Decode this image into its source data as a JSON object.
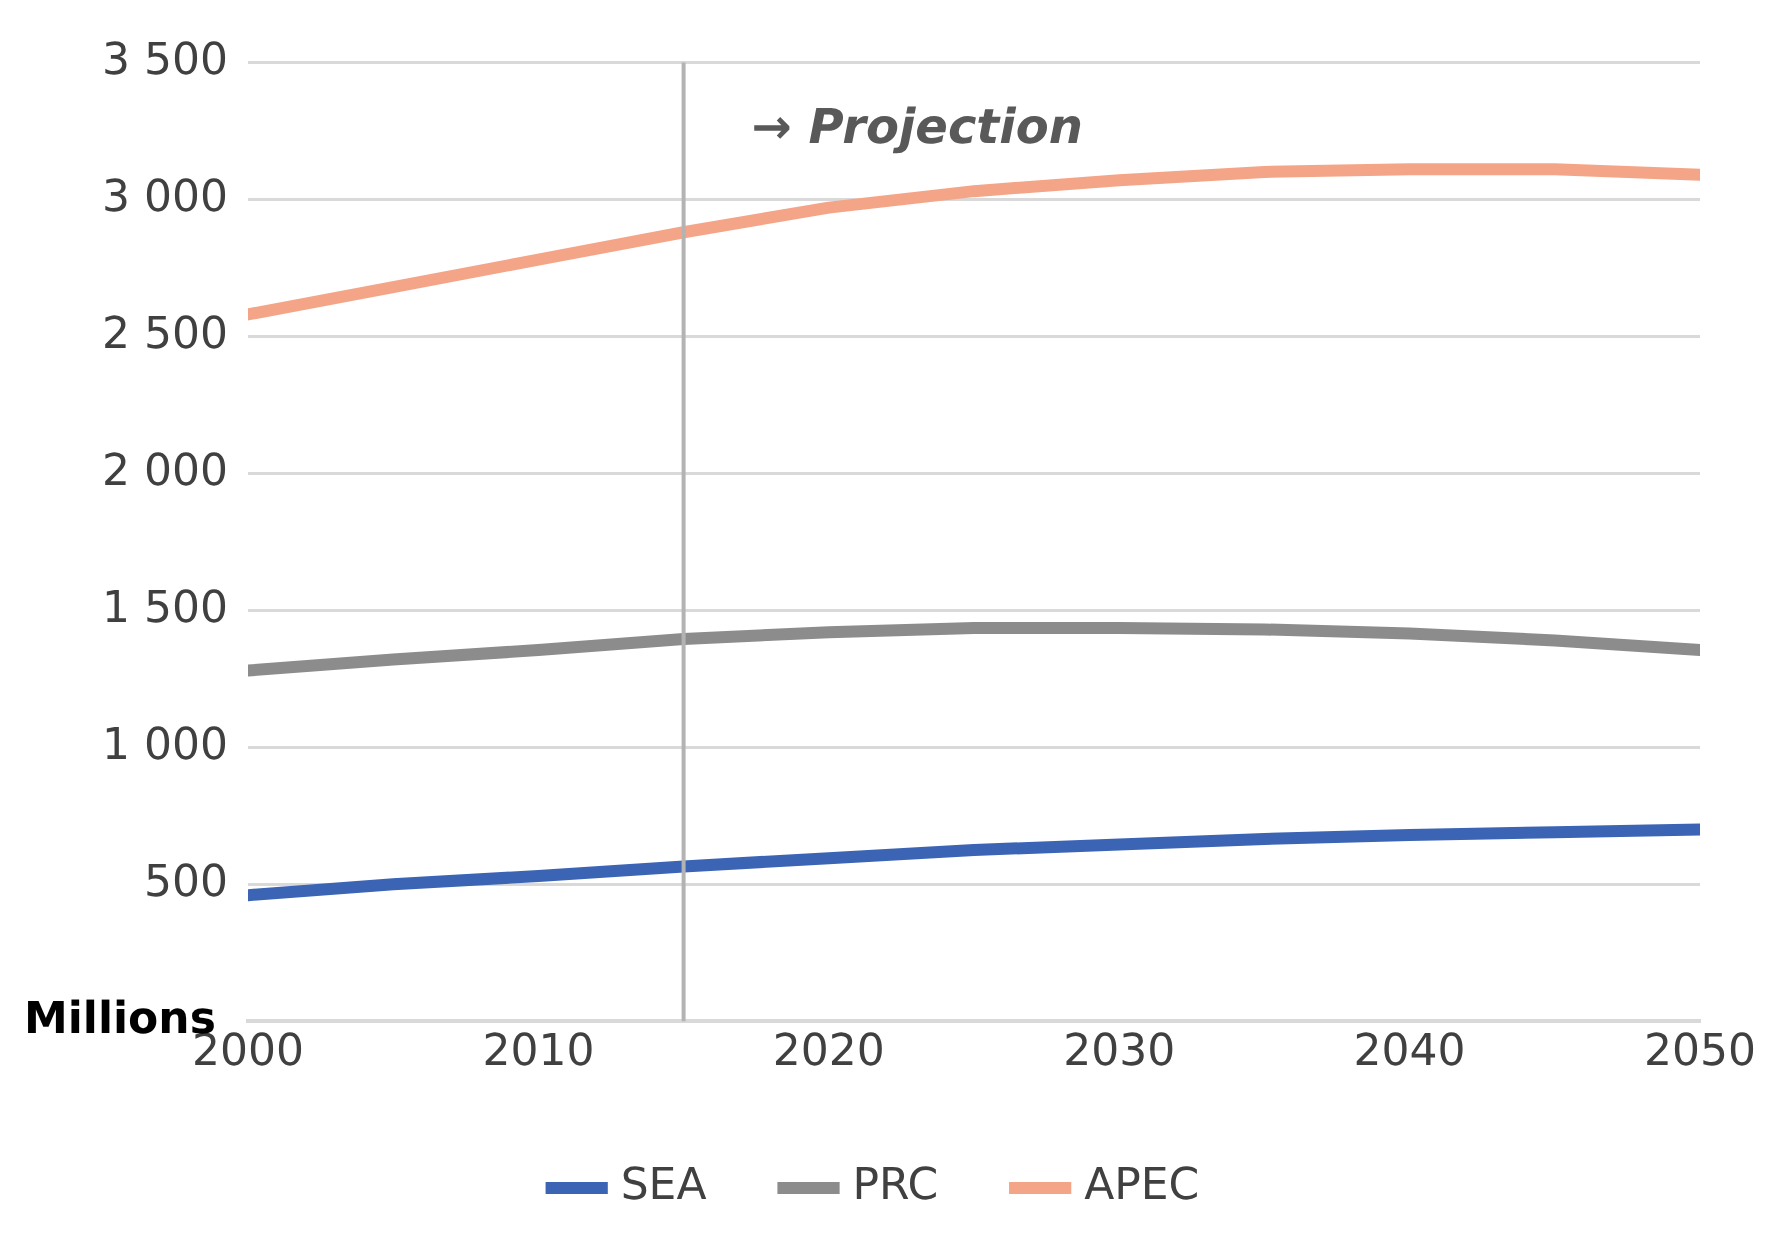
{
  "chart_data": {
    "type": "line",
    "ylabel": "Millions",
    "x": [
      2000,
      2005,
      2010,
      2015,
      2020,
      2025,
      2030,
      2035,
      2040,
      2045,
      2050
    ],
    "series": [
      {
        "name": "SEA",
        "color": "#3b64b4",
        "values": [
          460,
          500,
          530,
          565,
          595,
          625,
          645,
          665,
          680,
          690,
          700
        ]
      },
      {
        "name": "PRC",
        "color": "#8c8c8c",
        "values": [
          1280,
          1320,
          1355,
          1395,
          1420,
          1435,
          1435,
          1430,
          1415,
          1390,
          1355
        ]
      },
      {
        "name": "APEC",
        "color": "#f4a587",
        "values": [
          2580,
          2680,
          2780,
          2880,
          2970,
          3030,
          3070,
          3100,
          3110,
          3110,
          3090
        ]
      }
    ],
    "xlim": [
      2000,
      2050
    ],
    "xticks": [
      2000,
      2010,
      2020,
      2030,
      2040,
      2050
    ],
    "ylim": [
      0,
      3500
    ],
    "yticks": [
      {
        "value": 0,
        "label": null
      },
      {
        "value": 500,
        "label": "500"
      },
      {
        "value": 1000,
        "label": "1 000"
      },
      {
        "value": 1500,
        "label": "1 500"
      },
      {
        "value": 2000,
        "label": "2 000"
      },
      {
        "value": 2500,
        "label": "2 500"
      },
      {
        "value": 3000,
        "label": "3 000"
      },
      {
        "value": 3500,
        "label": "3 500"
      }
    ],
    "ref_lines": [
      {
        "axis": "x",
        "value": 2015,
        "label": "→ Projection",
        "color": "#b3b3b3"
      }
    ],
    "grid": "y",
    "legend": "bottom",
    "marker": "none",
    "line_style": "solid"
  }
}
